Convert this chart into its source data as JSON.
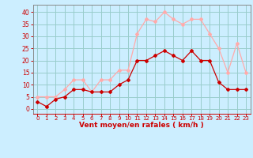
{
  "hours": [
    0,
    1,
    2,
    3,
    4,
    5,
    6,
    7,
    8,
    9,
    10,
    11,
    12,
    13,
    14,
    15,
    16,
    17,
    18,
    19,
    20,
    21,
    22,
    23
  ],
  "wind_avg": [
    3,
    1,
    4,
    5,
    8,
    8,
    7,
    7,
    7,
    10,
    12,
    20,
    20,
    22,
    24,
    22,
    20,
    24,
    20,
    20,
    11,
    8,
    8,
    8
  ],
  "wind_gust": [
    5,
    5,
    5,
    8,
    12,
    12,
    7,
    12,
    12,
    16,
    16,
    31,
    37,
    36,
    40,
    37,
    35,
    37,
    37,
    31,
    25,
    15,
    27,
    15
  ],
  "avg_color": "#cc0000",
  "gust_color": "#ffaaaa",
  "bg_color": "#cceeff",
  "grid_color": "#99cccc",
  "xlabel": "Vent moyen/en rafales ( km/h )",
  "xlabel_color": "#cc0000",
  "tick_color": "#cc0000",
  "ylim": [
    -2,
    43
  ],
  "yticks": [
    0,
    5,
    10,
    15,
    20,
    25,
    30,
    35,
    40
  ]
}
